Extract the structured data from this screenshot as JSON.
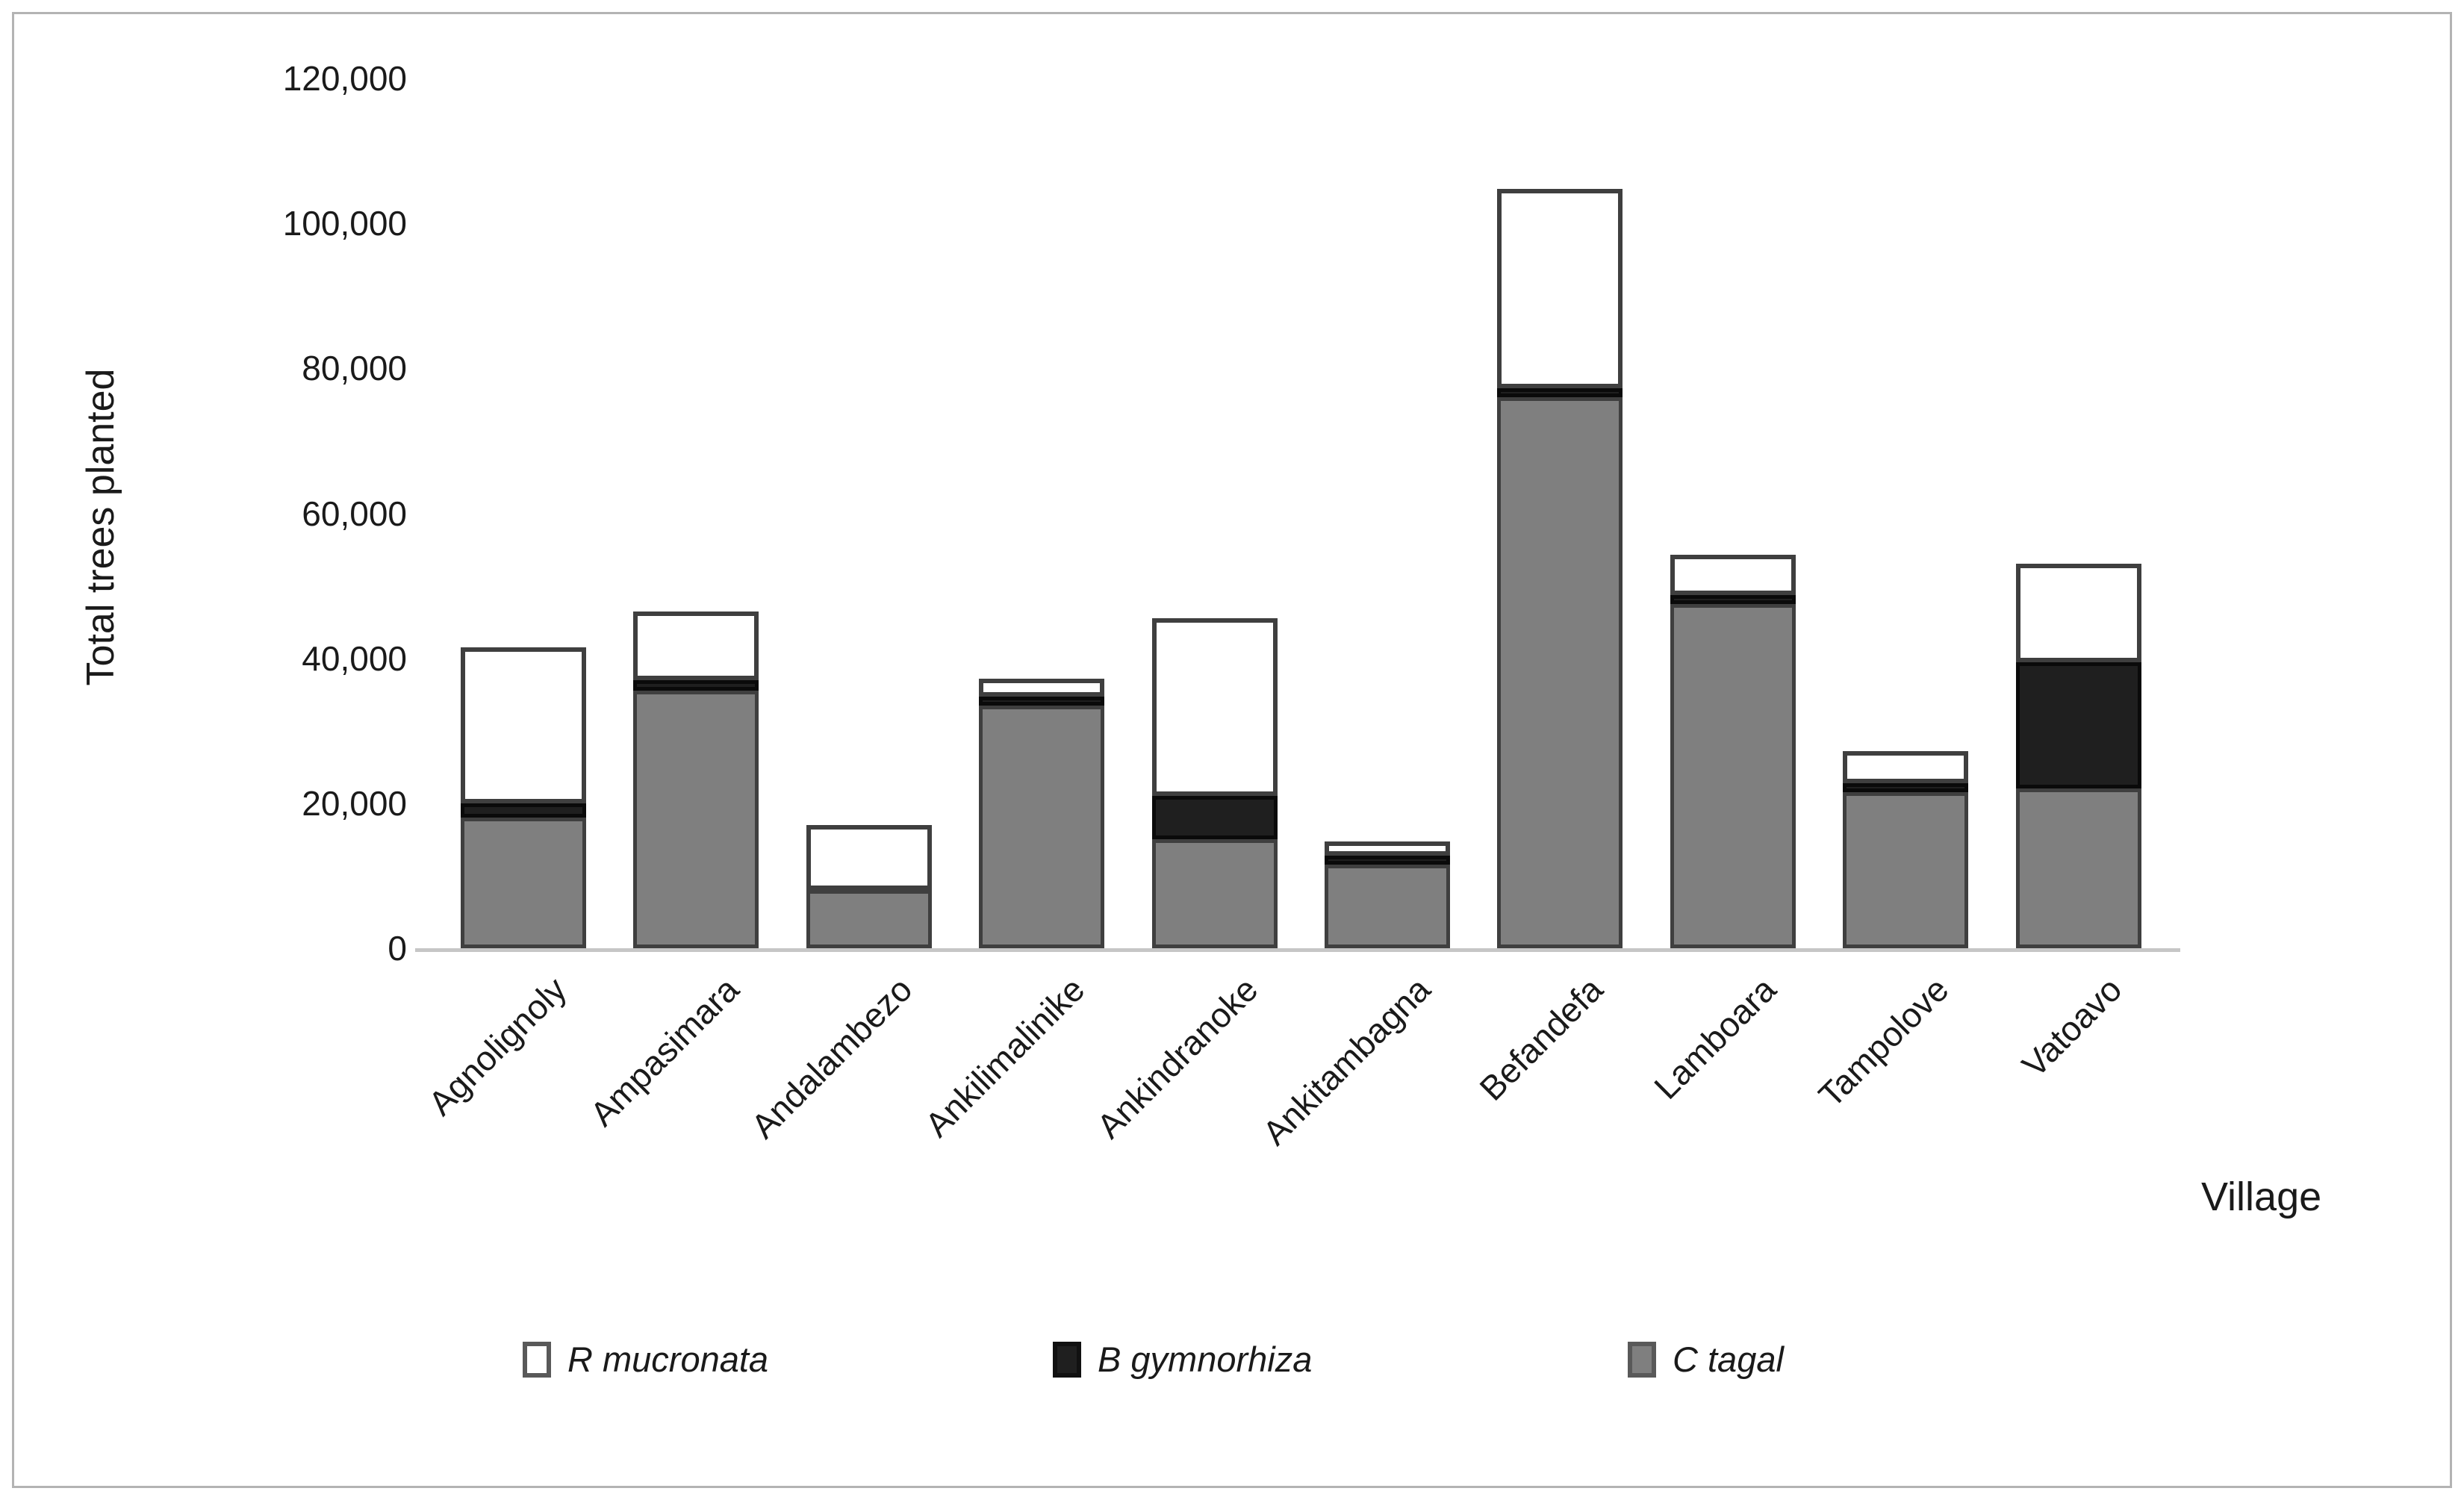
{
  "chart": {
    "y_axis_title": "Total trees planted",
    "x_axis_title": "Village"
  },
  "chart_data": {
    "type": "bar",
    "stacked": true,
    "title": "",
    "xlabel": "Village",
    "ylabel": "Total trees planted",
    "ylim": [
      0,
      120000
    ],
    "grid": false,
    "legend_position": "bottom",
    "y_ticks": [
      {
        "label": "120,000",
        "value": 120000
      },
      {
        "label": "100,000",
        "value": 100000
      },
      {
        "label": "80,000",
        "value": 80000
      },
      {
        "label": "60,000",
        "value": 60000
      },
      {
        "label": "40,000",
        "value": 40000
      },
      {
        "label": "20,000",
        "value": 20000
      },
      {
        "label": "0",
        "value": 0
      }
    ],
    "categories": [
      "Agnolignoly",
      "Ampasimara",
      "Andalambezo",
      "Ankilimalinike",
      "Ankindranoke",
      "Ankitambagna",
      "Befandefa",
      "Lamboara",
      "Tampolove",
      "Vatoavo"
    ],
    "series": [
      {
        "key": "c",
        "name": "C tagal",
        "color": "#7f7f7f",
        "values": [
          18000,
          35500,
          8000,
          33500,
          15000,
          11500,
          76000,
          47500,
          21500,
          22000
        ]
      },
      {
        "key": "b",
        "name": "B gymnorhiza",
        "color": "#1f1f1f",
        "values": [
          2000,
          1500,
          0,
          1000,
          6000,
          500,
          1000,
          1000,
          500,
          17500
        ]
      },
      {
        "key": "r",
        "name": "R mucronata",
        "color": "#ffffff",
        "values": [
          21500,
          9500,
          9000,
          2500,
          24500,
          2000,
          27500,
          5500,
          4500,
          13500
        ]
      }
    ],
    "legend_items": [
      {
        "key": "r",
        "label": "R mucronata"
      },
      {
        "key": "b",
        "label": "B gymnorhiza"
      },
      {
        "key": "c",
        "label": "C tagal"
      }
    ]
  }
}
